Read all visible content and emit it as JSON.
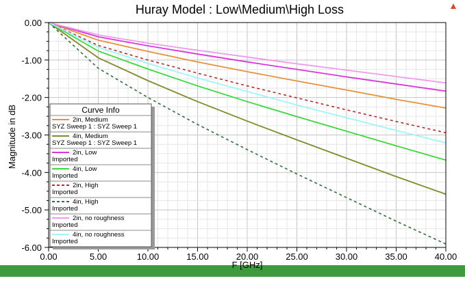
{
  "chart_data": {
    "type": "line",
    "title": "Huray Model : Low\\Medium\\High Loss",
    "xlabel": "F [GHz]",
    "ylabel": "Magnitude in dB",
    "xlim": [
      0,
      40
    ],
    "ylim": [
      -6,
      0
    ],
    "grid": true,
    "x_ticks": [
      "0.00",
      "5.00",
      "10.00",
      "15.00",
      "20.00",
      "25.00",
      "30.00",
      "35.00",
      "40.00"
    ],
    "y_ticks": [
      "0.00",
      "-1.00",
      "-2.00",
      "-3.00",
      "-4.00",
      "-5.00",
      "-6.00"
    ],
    "x": [
      0,
      5,
      10,
      15,
      20,
      25,
      30,
      35,
      40
    ],
    "legend_title": "Curve Info",
    "legend_position": "bottom-left",
    "series": [
      {
        "name": "2in, Medium",
        "source": "SYZ Sweep 1 : SYZ Sweep 1",
        "color": "#e8913a",
        "dash": false,
        "values": [
          0,
          -0.47,
          -0.77,
          -1.05,
          -1.31,
          -1.56,
          -1.8,
          -2.05,
          -2.28
        ]
      },
      {
        "name": "4in, Medium",
        "source": "SYZ Sweep 1 : SYZ Sweep 1",
        "color": "#7f8a2a",
        "dash": false,
        "values": [
          0,
          -0.94,
          -1.55,
          -2.11,
          -2.63,
          -3.13,
          -3.62,
          -4.11,
          -4.58
        ]
      },
      {
        "name": "2in, Low",
        "source": "Imported",
        "color": "#d936d9",
        "dash": false,
        "values": [
          0,
          -0.38,
          -0.62,
          -0.84,
          -1.05,
          -1.25,
          -1.45,
          -1.64,
          -1.83
        ]
      },
      {
        "name": "4in, Low",
        "source": "Imported",
        "color": "#3ed63e",
        "dash": false,
        "values": [
          0,
          -0.76,
          -1.24,
          -1.69,
          -2.11,
          -2.51,
          -2.9,
          -3.29,
          -3.67
        ]
      },
      {
        "name": "2in, High",
        "source": "Imported",
        "color": "#b02a2a",
        "dash": true,
        "values": [
          0,
          -0.61,
          -1.0,
          -1.35,
          -1.69,
          -2.01,
          -2.33,
          -2.64,
          -2.94
        ]
      },
      {
        "name": "4in, High",
        "source": "Imported",
        "color": "#2e6e3e",
        "dash": true,
        "values": [
          0,
          -1.22,
          -2.0,
          -2.72,
          -3.39,
          -4.04,
          -4.67,
          -5.3,
          -5.91
        ]
      },
      {
        "name": "2in, no roughness",
        "source": "Imported",
        "color": "#ee9aee",
        "dash": false,
        "values": [
          0,
          -0.33,
          -0.55,
          -0.74,
          -0.92,
          -1.1,
          -1.27,
          -1.44,
          -1.61
        ]
      },
      {
        "name": "4in, no roughness",
        "source": "Imported",
        "color": "#9ff5f5",
        "dash": false,
        "values": [
          0,
          -0.66,
          -1.09,
          -1.48,
          -1.84,
          -2.2,
          -2.54,
          -2.88,
          -3.21
        ]
      }
    ]
  },
  "colors": {
    "footer_bar": "#3d9b3d"
  }
}
